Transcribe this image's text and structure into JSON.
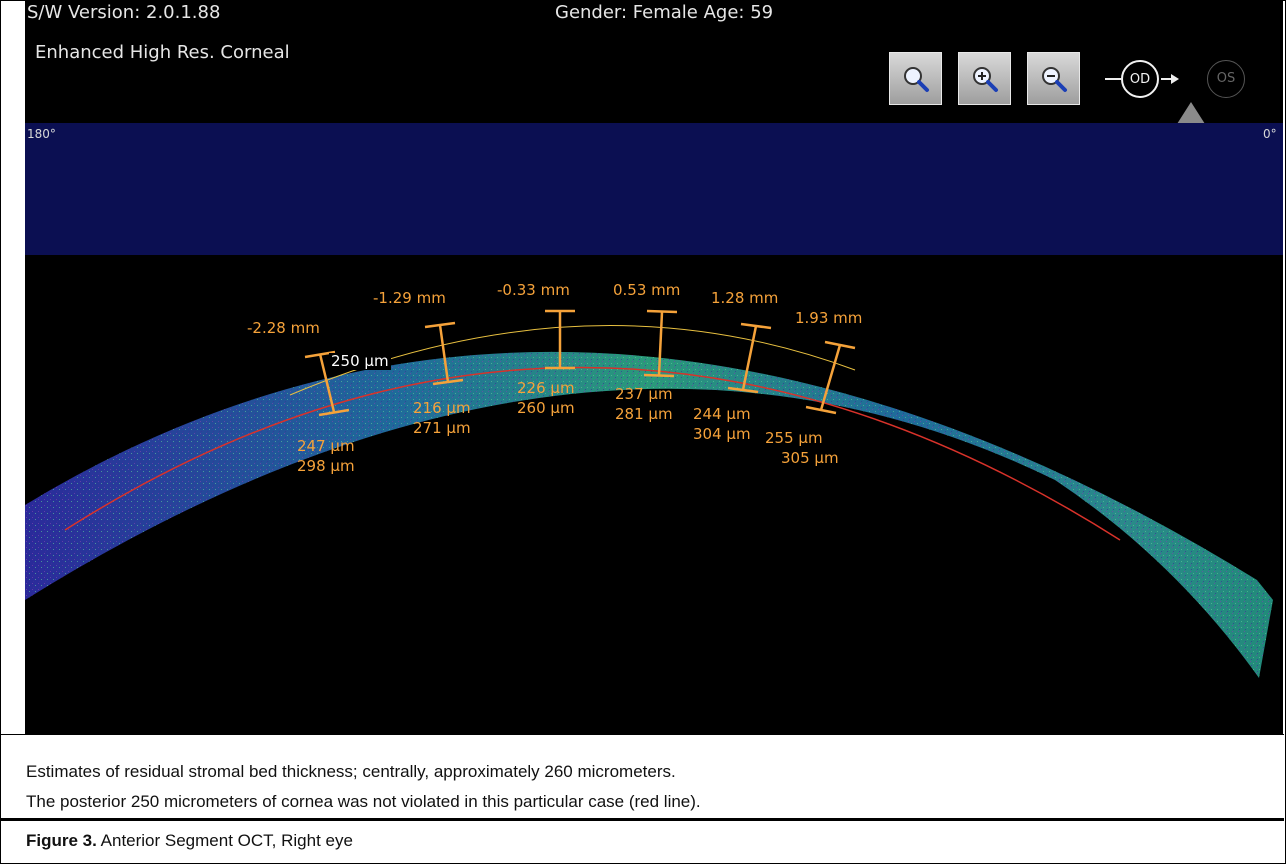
{
  "header": {
    "sw_version": "S/W Version: 2.0.1.88",
    "gender_age": "Gender: Female   Age: 59",
    "scan_mode": "Enhanced High Res. Corneal"
  },
  "toolbar": {
    "buttons": [
      {
        "name": "magnifier-icon"
      },
      {
        "name": "zoom-in-icon"
      },
      {
        "name": "zoom-out-icon"
      }
    ],
    "eye_selected": "OD",
    "eye_other": "OS"
  },
  "scan_axis": {
    "left_label": "180°",
    "right_label": "0°"
  },
  "measurements": {
    "m1": {
      "position": "-2.28 mm",
      "upper": "250 µm",
      "total1": "247 µm",
      "total2": "298 µm"
    },
    "m2": {
      "position": "-1.29 mm",
      "total1": "216 µm",
      "total2": "271 µm"
    },
    "m3": {
      "position": "-0.33 mm",
      "total1": "226 µm",
      "total2": "260 µm"
    },
    "m4": {
      "position": "0.53 mm",
      "total1": "237 µm",
      "total2": "281 µm"
    },
    "m5": {
      "position": "1.28 mm",
      "total1": "244 µm",
      "total2": "304 µm"
    },
    "m6": {
      "position": "1.93 mm",
      "total1": "255 µm",
      "total2": "305 µm"
    }
  },
  "colors": {
    "measure": "#f5a23a",
    "red_line": "#d8322a",
    "band": "#0b0f52"
  },
  "caption": {
    "line1": "Estimates of residual stromal bed thickness; centrally, approximately 260 micrometers.",
    "line2": "The posterior 250 micrometers of cornea was not violated in this particular case (red line)."
  },
  "figure": {
    "label": "Figure 3.",
    "title": " Anterior Segment OCT, Right eye"
  }
}
